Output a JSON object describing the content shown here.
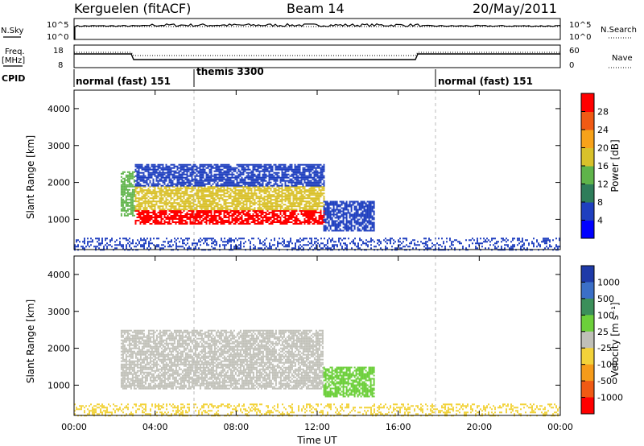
{
  "header": {
    "station": "Kerguelen (fitACF)",
    "beam": "Beam 14",
    "date": "20/May/2011"
  },
  "status_panels": {
    "nsky_label": "N.Sky",
    "nsearch_label": "N.Search",
    "freq_label_line1": "Freq.",
    "freq_label_line2": "[MHz]",
    "nave_label": "Nave",
    "cpid_label": "CPID",
    "left_top_tick": "10^5",
    "left_bottom_tick": "10^0",
    "right_top_tick": "10^5",
    "right_bottom_tick": "10^0",
    "freq_top_tick": "18",
    "freq_bottom_tick": "8",
    "nave_top_tick": "60",
    "nave_bottom_tick": "0"
  },
  "cpid_segments": [
    {
      "label": "normal (fast) 151",
      "start_hour": 0,
      "end_hour": 6
    },
    {
      "label": "themis 3300",
      "start_hour": 6,
      "end_hour": 18
    },
    {
      "label": "normal (fast) 151",
      "start_hour": 18,
      "end_hour": 24
    }
  ],
  "axes": {
    "xlabel": "Time UT",
    "x_ticks": [
      "00:00",
      "04:00",
      "08:00",
      "12:00",
      "16:00",
      "20:00",
      "00:00"
    ],
    "ylabel": "Slant Range [km]",
    "y_ticks": [
      "1000",
      "2000",
      "3000",
      "4000"
    ]
  },
  "power_colorbar": {
    "label": "Power [dB]",
    "ticks": [
      "4",
      "8",
      "12",
      "16",
      "20",
      "24",
      "28"
    ],
    "colors": [
      "#0000ff",
      "#1f3fbf",
      "#2e7d5a",
      "#5fb44a",
      "#d9c12a",
      "#f7a21a",
      "#f05a14",
      "#ff0000"
    ]
  },
  "velocity_colorbar": {
    "label": "Velocity [m s⁻¹]",
    "ticks": [
      "1000",
      "500",
      "100",
      "25",
      "-25",
      "-100",
      "-500",
      "-1000"
    ],
    "colors": [
      "#1e3aa8",
      "#3b6fc7",
      "#3b8f5a",
      "#6ccf3a",
      "#c0c0b8",
      "#f2d23a",
      "#f59b1a",
      "#f05a14",
      "#ff0000"
    ]
  },
  "chart_data": [
    {
      "type": "heatmap",
      "title": "Power",
      "xlabel": "Time UT",
      "ylabel": "Slant Range [km]",
      "xlim": [
        0,
        24
      ],
      "ylim": [
        180,
        4500
      ],
      "colorbar_range": [
        0,
        30
      ],
      "echo_regions": [
        {
          "t_start": 2.3,
          "t_end": 3.0,
          "range_low": 1100,
          "range_high": 2300,
          "level": 14
        },
        {
          "t_start": 3.0,
          "t_end": 12.3,
          "range_low": 900,
          "range_high": 1250,
          "level": 28
        },
        {
          "t_start": 3.0,
          "t_end": 12.3,
          "range_low": 1250,
          "range_high": 1900,
          "level": 18
        },
        {
          "t_start": 3.0,
          "t_end": 12.3,
          "range_low": 1900,
          "range_high": 2500,
          "level": 6
        },
        {
          "t_start": 12.3,
          "t_end": 14.8,
          "range_low": 700,
          "range_high": 1500,
          "level": 6
        },
        {
          "t_start": 0.0,
          "t_end": 24.0,
          "range_low": 180,
          "range_high": 500,
          "level": 5
        }
      ]
    },
    {
      "type": "heatmap",
      "title": "Velocity",
      "xlabel": "Time UT",
      "ylabel": "Slant Range [km]",
      "xlim": [
        0,
        24
      ],
      "ylim": [
        180,
        4500
      ],
      "colorbar_range": [
        -1000,
        1000
      ],
      "echo_regions": [
        {
          "t_start": 2.3,
          "t_end": 12.3,
          "range_low": 900,
          "range_high": 2500,
          "velocity": 0
        },
        {
          "t_start": 12.3,
          "t_end": 14.8,
          "range_low": 700,
          "range_high": 1500,
          "velocity": 100
        },
        {
          "t_start": 0.0,
          "t_end": 24.0,
          "range_low": 180,
          "range_high": 500,
          "velocity": -100
        }
      ]
    }
  ]
}
